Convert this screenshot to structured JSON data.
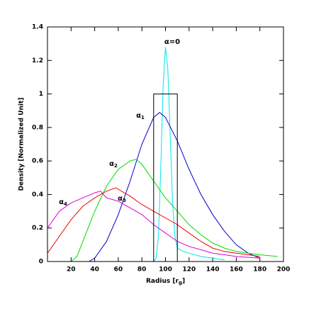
{
  "chart_data": {
    "type": "line",
    "x_label": {
      "text": "Radius [r",
      "sub": "g",
      "end": "]"
    },
    "y_label": "Density [Normalized Unit]",
    "xlim": [
      0,
      200
    ],
    "xticks": [
      20,
      40,
      60,
      80,
      100,
      120,
      140,
      160,
      180,
      200
    ],
    "ylim": [
      0,
      1.4
    ],
    "yticks": [
      0,
      0.2,
      0.4,
      0.6,
      0.8,
      1,
      1.2,
      1.4
    ],
    "annotations": [
      {
        "text": "α=0"
      },
      {
        "text": "α",
        "sub": "1"
      },
      {
        "text": "α",
        "sub": "2"
      },
      {
        "text": "α",
        "sub": "3"
      },
      {
        "text": "α",
        "sub": "4"
      }
    ],
    "series": [
      {
        "color": "#00e5ee",
        "x": [
          90,
          92,
          94,
          96,
          98,
          100,
          102,
          104,
          106,
          108,
          110,
          115,
          120,
          130,
          140,
          150
        ],
        "values": [
          0,
          0.02,
          0.15,
          0.55,
          1.05,
          1.28,
          1.15,
          0.75,
          0.35,
          0.15,
          0.08,
          0.06,
          0.05,
          0.03,
          0.02,
          0.01
        ]
      },
      {
        "color": "#0000cc",
        "x": [
          35,
          40,
          50,
          60,
          70,
          80,
          90,
          95,
          100,
          110,
          120,
          130,
          140,
          150,
          160,
          170,
          180
        ],
        "values": [
          0,
          0.02,
          0.12,
          0.28,
          0.48,
          0.7,
          0.86,
          0.89,
          0.86,
          0.72,
          0.55,
          0.4,
          0.28,
          0.18,
          0.1,
          0.05,
          0.02
        ]
      },
      {
        "color": "#00dd00",
        "x": [
          20,
          25,
          30,
          40,
          50,
          60,
          70,
          75,
          80,
          90,
          100,
          110,
          120,
          130,
          140,
          150,
          160,
          170,
          180,
          195
        ],
        "values": [
          0,
          0.03,
          0.12,
          0.3,
          0.45,
          0.55,
          0.6,
          0.61,
          0.58,
          0.48,
          0.38,
          0.3,
          0.22,
          0.16,
          0.11,
          0.08,
          0.06,
          0.05,
          0.04,
          0.03
        ]
      },
      {
        "color": "#ee0000",
        "x": [
          0,
          10,
          20,
          30,
          40,
          50,
          58,
          65,
          70,
          80,
          90,
          100,
          110,
          120,
          130,
          140,
          150,
          160,
          170,
          180
        ],
        "values": [
          0.05,
          0.15,
          0.25,
          0.33,
          0.38,
          0.42,
          0.44,
          0.41,
          0.39,
          0.34,
          0.3,
          0.26,
          0.22,
          0.17,
          0.12,
          0.08,
          0.06,
          0.05,
          0.04,
          0.03
        ]
      },
      {
        "color": "#dd00dd",
        "x": [
          0,
          10,
          20,
          30,
          40,
          45,
          50,
          60,
          70,
          80,
          90,
          100,
          110,
          120,
          130,
          140,
          150,
          160,
          180
        ],
        "values": [
          0.2,
          0.3,
          0.35,
          0.38,
          0.41,
          0.42,
          0.38,
          0.36,
          0.32,
          0.28,
          0.22,
          0.17,
          0.12,
          0.09,
          0.07,
          0.05,
          0.04,
          0.03,
          0.02
        ]
      },
      {
        "color": "#000000",
        "x": [
          90,
          90,
          110,
          110
        ],
        "values": [
          0,
          1,
          1,
          0
        ]
      }
    ]
  }
}
